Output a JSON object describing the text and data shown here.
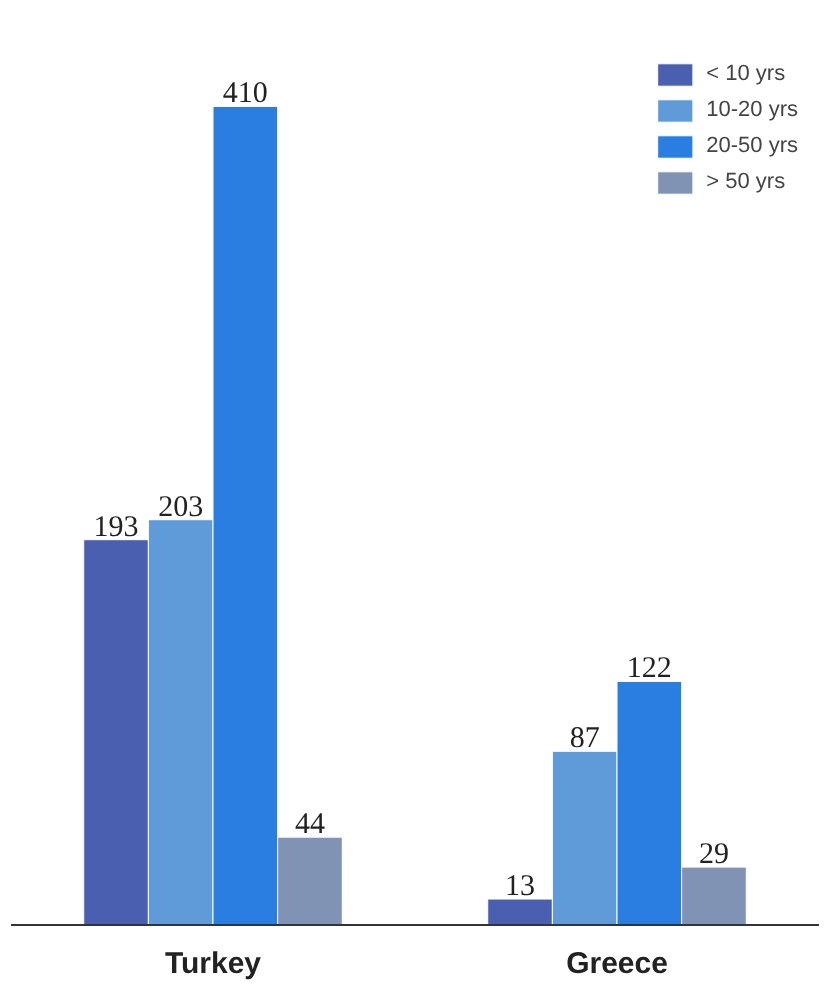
{
  "chart_data": {
    "type": "bar",
    "categories": [
      "Turkey",
      "Greece"
    ],
    "series": [
      {
        "name": "< 10 yrs",
        "color": "#4a5fb0",
        "values": [
          193,
          13
        ]
      },
      {
        "name": "10-20 yrs",
        "color": "#5f9bd8",
        "values": [
          203,
          87
        ]
      },
      {
        "name": "20-50 yrs",
        "color": "#2a7de1",
        "values": [
          410,
          122
        ]
      },
      {
        "name": "> 50 yrs",
        "color": "#8093b4",
        "values": [
          44,
          29
        ]
      }
    ],
    "data_labels": true,
    "legend": "top right",
    "grid": false,
    "tick_labels": "x"
  }
}
